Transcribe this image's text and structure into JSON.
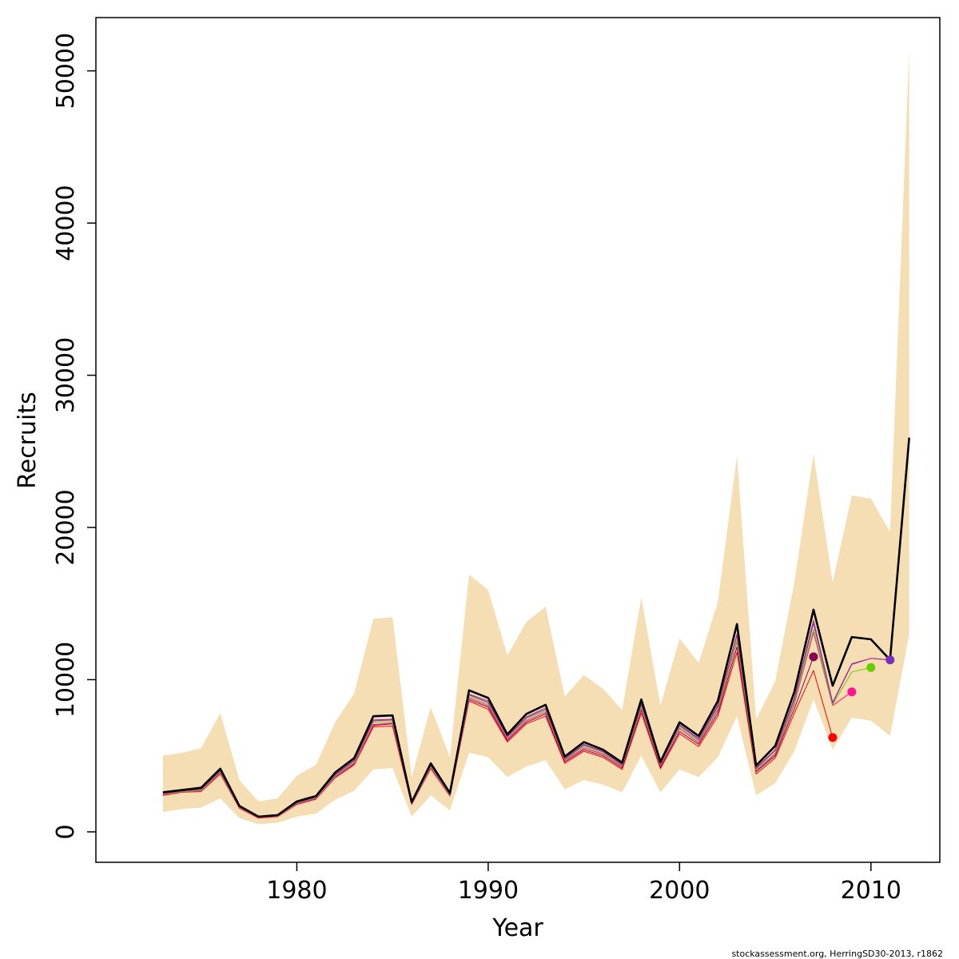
{
  "chart_data": {
    "type": "line",
    "xlabel": "Year",
    "ylabel": "Recruits",
    "xlim": [
      1969.5,
      2013.6
    ],
    "ylim": [
      -2000,
      53500
    ],
    "x_ticks": [
      1980,
      1990,
      2000,
      2010
    ],
    "x_tick_labels": [
      "1980",
      "1990",
      "2000",
      "2010"
    ],
    "y_ticks": [
      0,
      10000,
      20000,
      30000,
      40000,
      50000
    ],
    "y_tick_labels": [
      "0",
      "10000",
      "20000",
      "30000",
      "40000",
      "50000"
    ],
    "grid": false,
    "legend": "none",
    "confidence_band": {
      "color": "#F5DEB3",
      "x": [
        1973,
        1974,
        1975,
        1976,
        1977,
        1978,
        1979,
        1980,
        1981,
        1982,
        1983,
        1984,
        1985,
        1986,
        1987,
        1988,
        1989,
        1990,
        1991,
        1992,
        1993,
        1994,
        1995,
        1996,
        1997,
        1998,
        1999,
        2000,
        2001,
        2002,
        2003,
        2004,
        2005,
        2006,
        2007,
        2008,
        2009,
        2010,
        2011,
        2012
      ],
      "upper": [
        5000,
        5200,
        5500,
        7800,
        3400,
        2000,
        2200,
        3700,
        4400,
        7200,
        9100,
        14000,
        14100,
        3600,
        8200,
        4900,
        16900,
        15900,
        11600,
        13800,
        14800,
        8900,
        10300,
        9400,
        8000,
        15400,
        8300,
        12700,
        11100,
        15100,
        24700,
        7400,
        9900,
        16400,
        24800,
        16400,
        22100,
        21900,
        19700,
        51400
      ],
      "lower": [
        1300,
        1500,
        1600,
        2200,
        900,
        500,
        600,
        1000,
        1200,
        2100,
        2700,
        4100,
        4200,
        1000,
        2400,
        1400,
        5200,
        4900,
        3600,
        4300,
        4700,
        2800,
        3400,
        3100,
        2600,
        5000,
        2600,
        4100,
        3600,
        4900,
        7600,
        2400,
        3200,
        5300,
        8700,
        5400,
        7500,
        7300,
        6300,
        13000
      ]
    },
    "series": [
      {
        "color": "#000000",
        "line_width": 2.6,
        "x": [
          1973,
          1974,
          1975,
          1976,
          1977,
          1978,
          1979,
          1980,
          1981,
          1982,
          1983,
          1984,
          1985,
          1986,
          1987,
          1988,
          1989,
          1990,
          1991,
          1992,
          1993,
          1994,
          1995,
          1996,
          1997,
          1998,
          1999,
          2000,
          2001,
          2002,
          2003,
          2004,
          2005,
          2006,
          2007,
          2008,
          2009,
          2010,
          2011,
          2012
        ],
        "values": [
          2600,
          2750,
          2900,
          4150,
          1700,
          1000,
          1100,
          2000,
          2350,
          3900,
          4850,
          7600,
          7650,
          1950,
          4500,
          2550,
          9300,
          8800,
          6400,
          7750,
          8350,
          4950,
          5900,
          5400,
          4550,
          8700,
          4600,
          7200,
          6300,
          8600,
          13650,
          4350,
          5650,
          9200,
          14600,
          9600,
          12800,
          12650,
          11300,
          25900
        ]
      },
      {
        "color": "#FF0000",
        "line_width": 1,
        "x": [
          1973,
          1974,
          1975,
          1976,
          1977,
          1978,
          1979,
          1980,
          1981,
          1982,
          1983,
          1984,
          1985,
          1986,
          1987,
          1988,
          1989,
          1990,
          1991,
          1992,
          1993,
          1994,
          1995,
          1996,
          1997,
          1998,
          1999,
          2000,
          2001,
          2002,
          2003,
          2004,
          2005,
          2006,
          2007,
          2008
        ],
        "values": [
          2400,
          2600,
          2650,
          3800,
          1550,
          900,
          1000,
          1800,
          2150,
          3550,
          4400,
          6900,
          6950,
          1800,
          4150,
          2350,
          8600,
          8050,
          5900,
          7100,
          7600,
          4500,
          5300,
          4900,
          4100,
          7800,
          4150,
          6450,
          5600,
          7600,
          11800,
          3800,
          4850,
          7800,
          10600,
          6200
        ],
        "end_point": {
          "x": 2008,
          "y": 6200
        }
      },
      {
        "color": "#8B0057",
        "line_width": 1,
        "x": [
          1973,
          1974,
          1975,
          1976,
          1977,
          1978,
          1979,
          1980,
          1981,
          1982,
          1983,
          1984,
          1985,
          1986,
          1987,
          1988,
          1989,
          1990,
          1991,
          1992,
          1993,
          1994,
          1995,
          1996,
          1997,
          1998,
          1999,
          2000,
          2001,
          2002,
          2003,
          2004,
          2005,
          2006,
          2007
        ],
        "values": [
          2500,
          2650,
          2700,
          3900,
          1600,
          950,
          1050,
          1850,
          2200,
          3600,
          4500,
          7000,
          7100,
          1850,
          4250,
          2400,
          8700,
          8200,
          6000,
          7200,
          7750,
          4600,
          5400,
          5000,
          4200,
          8000,
          4250,
          6600,
          5750,
          7800,
          12150,
          3950,
          5000,
          8100,
          11500
        ],
        "end_point": {
          "x": 2007,
          "y": 11500
        }
      },
      {
        "color": "#FF1493",
        "line_width": 1,
        "x": [
          1973,
          1974,
          1975,
          1976,
          1977,
          1978,
          1979,
          1980,
          1981,
          1982,
          1983,
          1984,
          1985,
          1986,
          1987,
          1988,
          1989,
          1990,
          1991,
          1992,
          1993,
          1994,
          1995,
          1996,
          1997,
          1998,
          1999,
          2000,
          2001,
          2002,
          2003,
          2004,
          2005,
          2006,
          2007,
          2008,
          2009
        ],
        "values": [
          2450,
          2620,
          2680,
          3850,
          1580,
          920,
          1020,
          1820,
          2180,
          3580,
          4450,
          7050,
          7150,
          1820,
          4200,
          2380,
          8800,
          8300,
          6100,
          7300,
          7850,
          4700,
          5500,
          5100,
          4300,
          8100,
          4350,
          6800,
          5850,
          8000,
          12500,
          4000,
          5100,
          8400,
          13100,
          8300,
          9200
        ],
        "end_point": {
          "x": 2009,
          "y": 9200
        }
      },
      {
        "color": "#66CC00",
        "line_width": 1,
        "x": [
          1973,
          1974,
          1975,
          1976,
          1977,
          1978,
          1979,
          1980,
          1981,
          1982,
          1983,
          1984,
          1985,
          1986,
          1987,
          1988,
          1989,
          1990,
          1991,
          1992,
          1993,
          1994,
          1995,
          1996,
          1997,
          1998,
          1999,
          2000,
          2001,
          2002,
          2003,
          2004,
          2005,
          2006,
          2007,
          2008,
          2009,
          2010
        ],
        "values": [
          2480,
          2640,
          2720,
          3920,
          1620,
          960,
          1060,
          1880,
          2240,
          3650,
          4550,
          7200,
          7250,
          1870,
          4280,
          2420,
          8900,
          8400,
          6200,
          7400,
          7950,
          4750,
          5600,
          5150,
          4350,
          8200,
          4400,
          6900,
          5950,
          8100,
          12600,
          4050,
          5200,
          8500,
          13300,
          8350,
          10500,
          10800
        ],
        "end_point": {
          "x": 2010,
          "y": 10800
        }
      },
      {
        "color": "#7B2FBE",
        "line_width": 1,
        "x": [
          1973,
          1974,
          1975,
          1976,
          1977,
          1978,
          1979,
          1980,
          1981,
          1982,
          1983,
          1984,
          1985,
          1986,
          1987,
          1988,
          1989,
          1990,
          1991,
          1992,
          1993,
          1994,
          1995,
          1996,
          1997,
          1998,
          1999,
          2000,
          2001,
          2002,
          2003,
          2004,
          2005,
          2006,
          2007,
          2008,
          2009,
          2010,
          2011
        ],
        "values": [
          2520,
          2680,
          2780,
          3980,
          1650,
          980,
          1080,
          1920,
          2280,
          3720,
          4650,
          7300,
          7350,
          1900,
          4350,
          2460,
          9000,
          8500,
          6250,
          7500,
          8050,
          4800,
          5700,
          5250,
          4400,
          8350,
          4450,
          7000,
          6050,
          8250,
          12900,
          4150,
          5350,
          8700,
          13700,
          8450,
          11000,
          11400,
          11300
        ],
        "end_point": {
          "x": 2011,
          "y": 11300
        }
      },
      {
        "color": "#B0208F",
        "line_width": 1,
        "x": [
          1973,
          1974,
          1975,
          1976,
          1977,
          1978,
          1979,
          1980,
          1981,
          1982,
          1983,
          1984,
          1985,
          1986,
          1987,
          1988,
          1989,
          1990,
          1991,
          1992,
          1993,
          1994,
          1995,
          1996,
          1997,
          1998,
          1999,
          2000,
          2001,
          2002,
          2003,
          2004,
          2005,
          2006,
          2007,
          2008,
          2009,
          2010,
          2011
        ],
        "values": [
          2540,
          2700,
          2800,
          4020,
          1680,
          990,
          1090,
          1950,
          2300,
          3780,
          4720,
          7350,
          7400,
          1920,
          4400,
          2480,
          9050,
          8600,
          6300,
          7550,
          8150,
          4850,
          5750,
          5300,
          4450,
          8450,
          4500,
          7050,
          6150,
          8350,
          13000,
          4200,
          5400,
          8800,
          13900,
          8500,
          11050,
          11400,
          11300
        ]
      }
    ]
  },
  "credit": "stockassessment.org, HerringSD30-2013, r1862"
}
